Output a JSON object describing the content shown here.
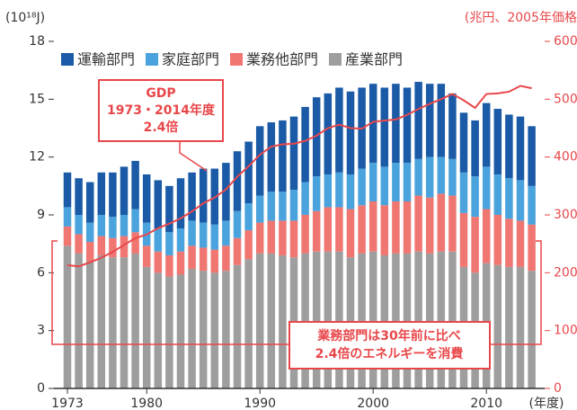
{
  "chart_data": {
    "type": "bar",
    "stacked": true,
    "y_label": "(10¹⁸J)",
    "y2_label": "(兆円、2005年価格",
    "x_label": "(年度)",
    "categories": [
      "1973",
      null,
      null,
      null,
      null,
      null,
      null,
      "1980",
      null,
      null,
      null,
      null,
      null,
      null,
      null,
      null,
      null,
      "1990",
      null,
      null,
      null,
      null,
      null,
      null,
      null,
      null,
      null,
      "2000",
      null,
      null,
      null,
      null,
      null,
      null,
      null,
      null,
      null,
      "2010",
      null,
      null,
      null,
      null
    ],
    "series": [
      {
        "name": "産業部門",
        "color": "#9e9e9e",
        "values": [
          7.4,
          7.0,
          6.6,
          6.9,
          6.8,
          6.8,
          7.0,
          6.3,
          6.0,
          5.8,
          5.9,
          6.2,
          6.1,
          6.0,
          6.1,
          6.4,
          6.7,
          7.0,
          7.0,
          6.9,
          6.8,
          7.0,
          7.1,
          7.1,
          7.1,
          6.8,
          7.0,
          7.1,
          6.9,
          7.0,
          7.0,
          7.1,
          7.0,
          7.1,
          7.1,
          6.3,
          6.0,
          6.5,
          6.4,
          6.3,
          6.3,
          6.1
        ]
      },
      {
        "name": "業務他部門",
        "color": "#f07672",
        "values": [
          1.0,
          1.0,
          1.0,
          1.0,
          1.0,
          1.1,
          1.1,
          1.1,
          1.1,
          1.1,
          1.2,
          1.2,
          1.2,
          1.2,
          1.3,
          1.4,
          1.5,
          1.6,
          1.7,
          1.8,
          1.9,
          2.0,
          2.1,
          2.3,
          2.3,
          2.5,
          2.5,
          2.6,
          2.6,
          2.7,
          2.7,
          2.9,
          2.9,
          3.0,
          2.9,
          2.8,
          2.9,
          2.8,
          2.6,
          2.5,
          2.4,
          2.4
        ]
      },
      {
        "name": "家庭部門",
        "color": "#4aa3dc",
        "values": [
          1.0,
          1.0,
          1.0,
          1.1,
          1.1,
          1.1,
          1.2,
          1.2,
          1.2,
          1.2,
          1.2,
          1.3,
          1.3,
          1.3,
          1.3,
          1.4,
          1.4,
          1.4,
          1.5,
          1.5,
          1.6,
          1.7,
          1.8,
          1.7,
          1.8,
          1.8,
          1.9,
          2.0,
          2.0,
          2.0,
          2.0,
          1.9,
          2.1,
          1.9,
          1.9,
          2.1,
          2.1,
          2.2,
          2.1,
          2.1,
          2.1,
          2.0
        ]
      },
      {
        "name": "運輸部門",
        "color": "#1a5aa6",
        "values": [
          1.8,
          1.9,
          2.1,
          2.2,
          2.3,
          2.5,
          2.5,
          2.5,
          2.5,
          2.4,
          2.6,
          2.5,
          2.8,
          2.9,
          3.0,
          3.1,
          3.2,
          3.6,
          3.6,
          3.7,
          3.8,
          3.9,
          4.1,
          4.2,
          4.4,
          4.3,
          4.2,
          4.1,
          4.1,
          4.1,
          3.9,
          4.0,
          3.8,
          3.8,
          3.4,
          3.1,
          2.9,
          3.3,
          3.4,
          3.3,
          3.3,
          3.1
        ]
      },
      {
        "type": "line",
        "axis": "y2",
        "color": "#e8474a",
        "values": [
          213,
          211,
          218,
          226,
          236,
          248,
          260,
          266,
          277,
          285,
          294,
          306,
          320,
          330,
          344,
          366,
          384,
          404,
          418,
          422,
          423,
          428,
          437,
          450,
          456,
          450,
          449,
          461,
          463,
          465,
          473,
          483,
          492,
          500,
          509,
          498,
          485,
          509,
          510,
          513,
          523,
          519
        ]
      }
    ],
    "legend_order": [
      3,
      2,
      1,
      0
    ],
    "ylim": [
      0,
      18
    ],
    "yticks": [
      0,
      3,
      6,
      9,
      12,
      15,
      18
    ],
    "y2lim": [
      0,
      600
    ],
    "y2ticks": [
      0,
      100,
      200,
      300,
      400,
      500,
      600
    ],
    "annotations": [
      {
        "lines": [
          "GDP",
          "1973・2014年度",
          "2.4倍"
        ]
      },
      {
        "lines": [
          "業務部門は30年前に比べ",
          "2.4倍のエネルギーを消費"
        ]
      }
    ]
  }
}
